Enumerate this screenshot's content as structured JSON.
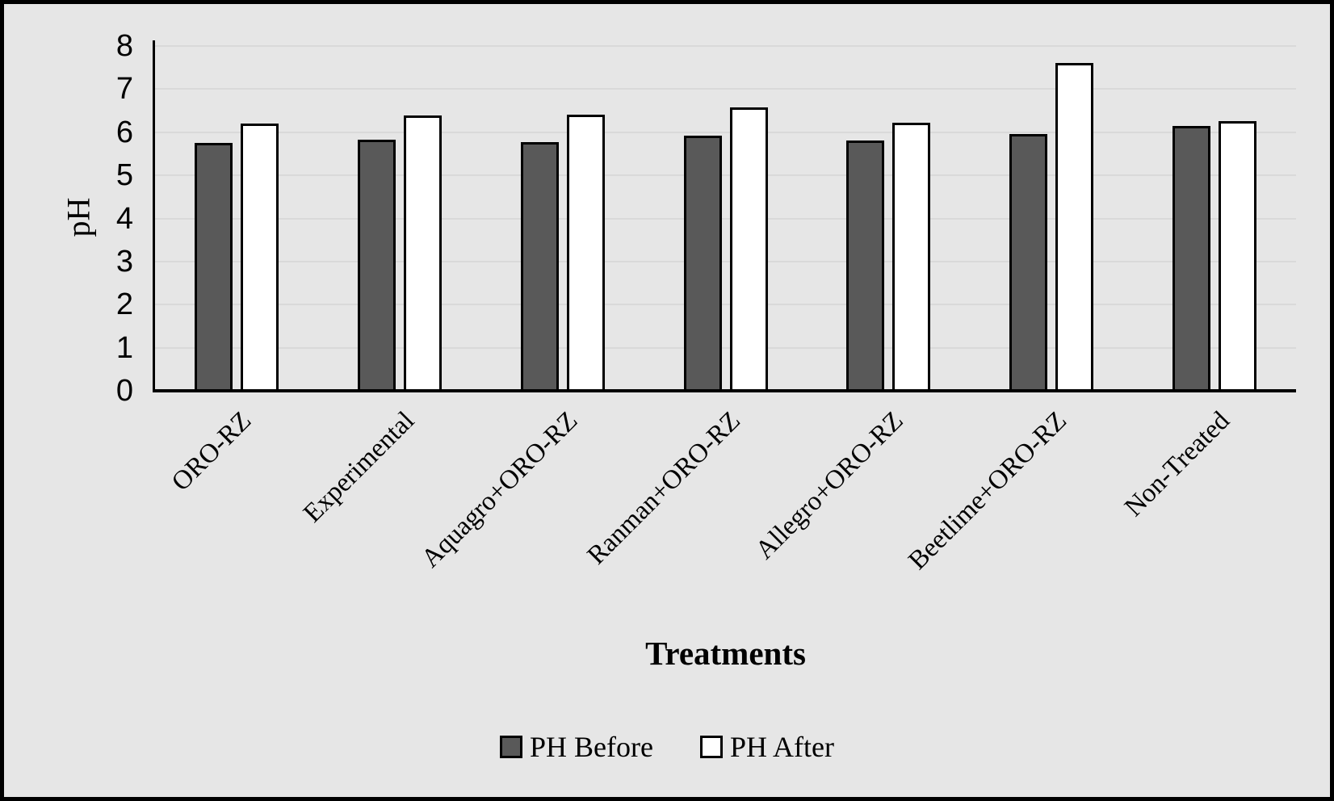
{
  "chart_data": {
    "type": "bar",
    "title": "",
    "xlabel": "Treatments",
    "ylabel": "pH",
    "ylim": [
      0,
      8
    ],
    "ytick_step": 1,
    "grid": true,
    "legend_position": "bottom",
    "categories": [
      "ORO-RZ",
      "Experimental",
      "Aquagro+ORO-RZ",
      "Ranman+ORO-RZ",
      "Allegro+ORO-RZ",
      "Beetlime+ORO-RZ",
      "Non-Treated"
    ],
    "series": [
      {
        "name": "PH Before",
        "color": "#595959",
        "values": [
          5.75,
          5.83,
          5.77,
          5.93,
          5.8,
          5.95,
          6.15
        ]
      },
      {
        "name": "PH After",
        "color": "#ffffff",
        "values": [
          6.2,
          6.38,
          6.4,
          6.57,
          6.22,
          7.6,
          6.25
        ]
      }
    ],
    "colors": {
      "background": "#e6e6e6",
      "gridline": "#d9d9d9",
      "axis": "#000000",
      "bar_outline": "#000000",
      "frame_border": "#000000"
    }
  }
}
